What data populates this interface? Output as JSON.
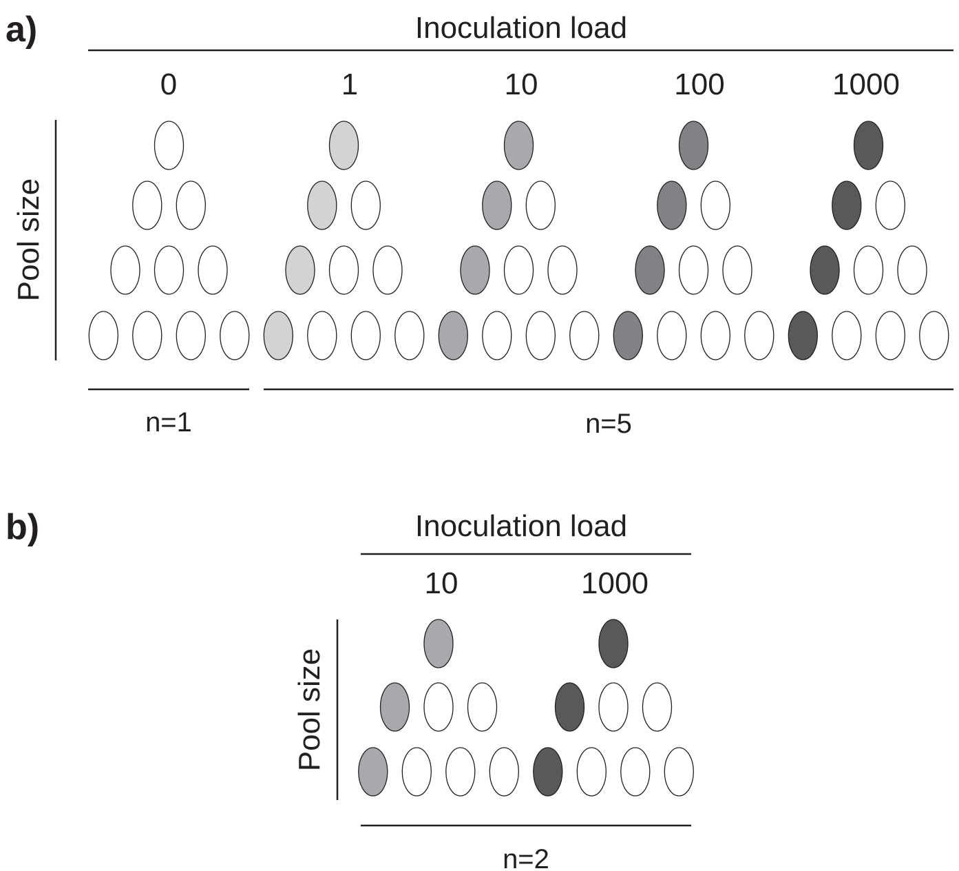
{
  "panels": [
    {
      "label": "a)",
      "header": "Inoculation load",
      "y_label": "Pool size",
      "groups": [
        {
          "load": "0",
          "shade": "#ffffff",
          "pools": [
            1,
            2,
            3,
            4
          ]
        },
        {
          "load": "1",
          "shade": "#d1d3d4",
          "pools": [
            1,
            2,
            3,
            4
          ]
        },
        {
          "load": "10",
          "shade": "#a7a9ac",
          "pools": [
            1,
            2,
            3,
            4
          ]
        },
        {
          "load": "100",
          "shade": "#808285",
          "pools": [
            1,
            2,
            3,
            4
          ]
        },
        {
          "load": "1000",
          "shade": "#58595b",
          "pools": [
            1,
            2,
            3,
            4
          ]
        }
      ],
      "replicates": [
        "n=1",
        "n=5"
      ]
    },
    {
      "label": "b)",
      "header": "Inoculation load",
      "y_label": "Pool size",
      "groups": [
        {
          "load": "10",
          "shade": "#a7a9ac",
          "pools": [
            1,
            3,
            4
          ]
        },
        {
          "load": "1000",
          "shade": "#58595b",
          "pools": [
            1,
            3,
            4
          ]
        }
      ],
      "replicates": [
        "n=2"
      ]
    }
  ]
}
